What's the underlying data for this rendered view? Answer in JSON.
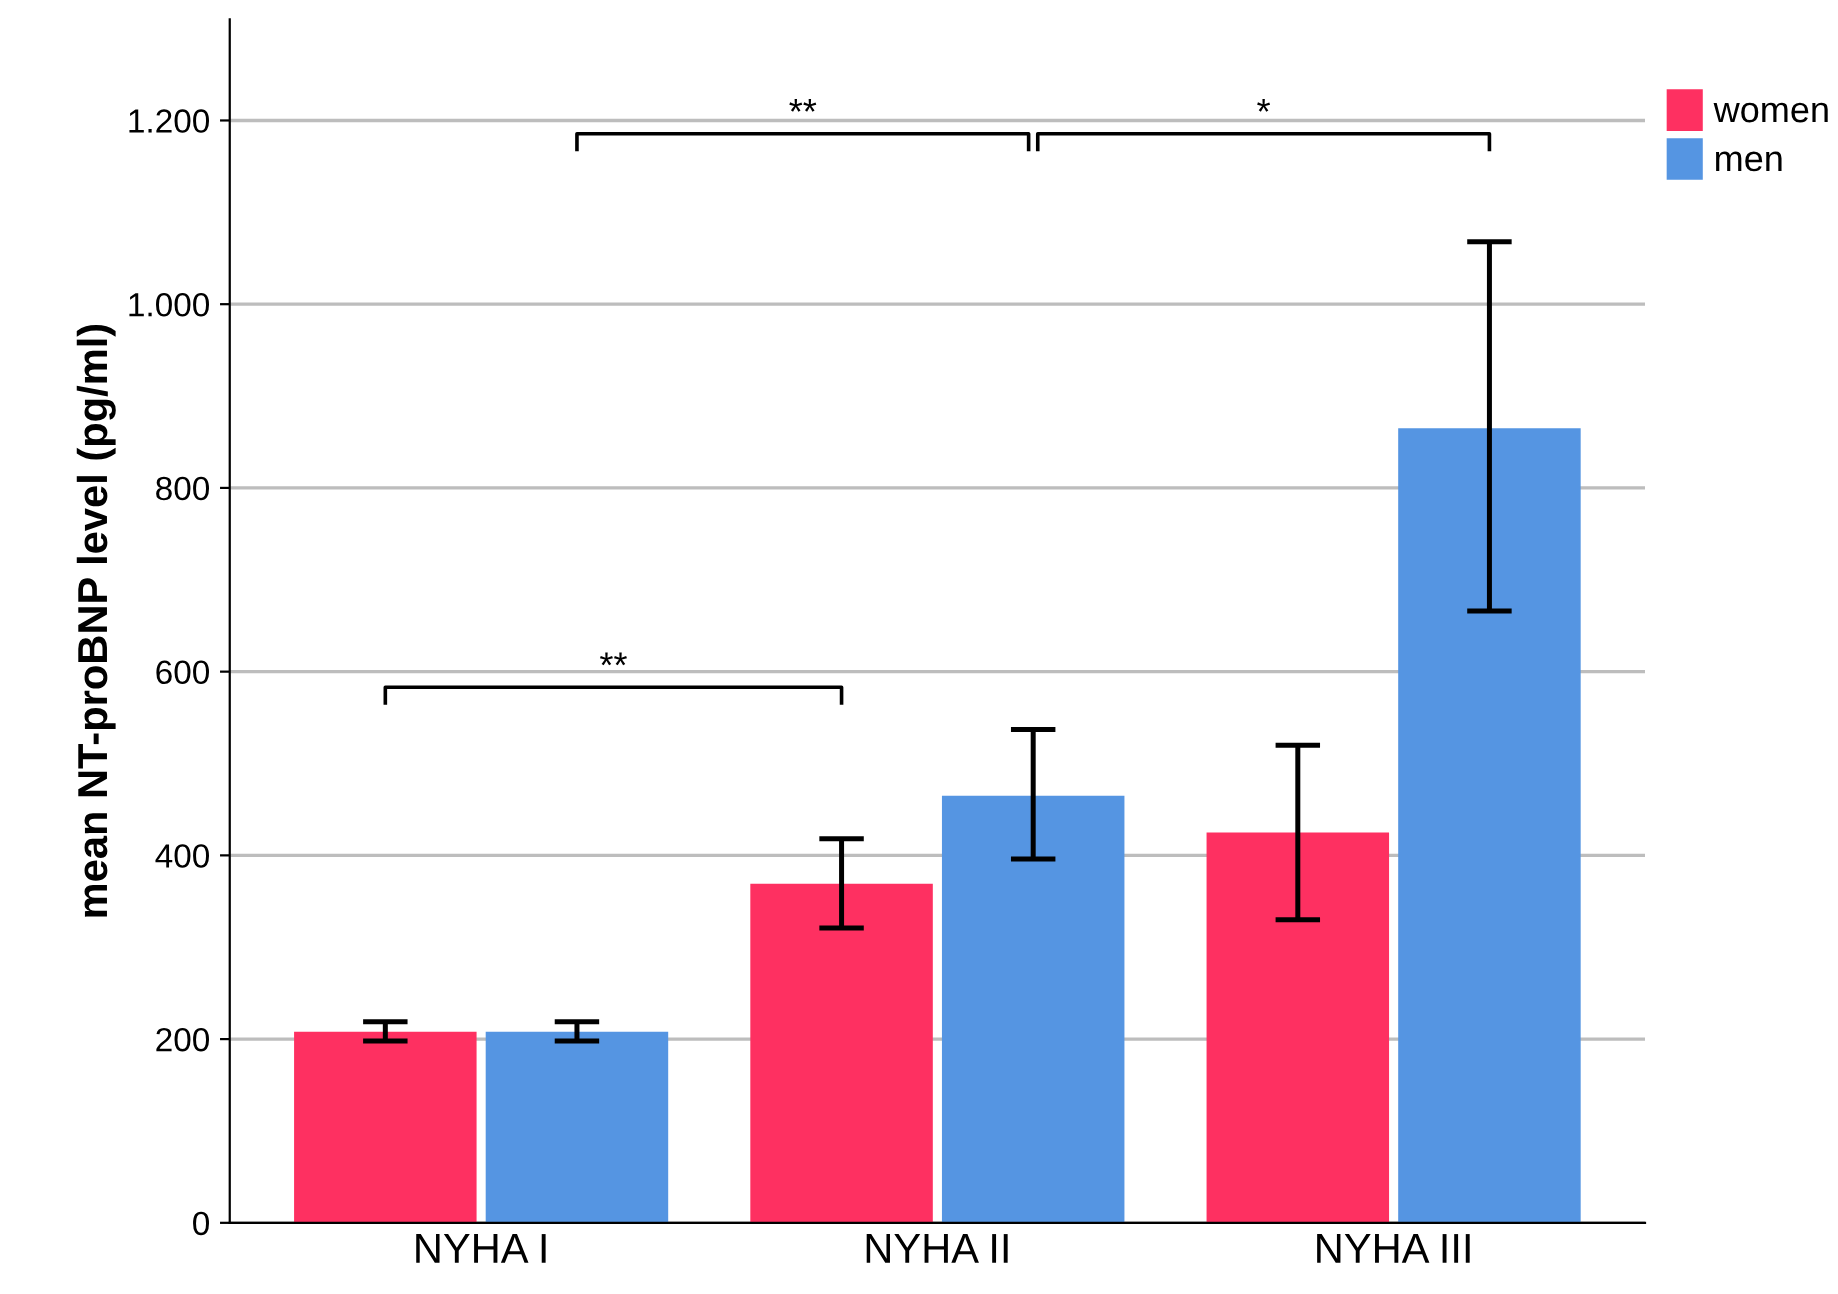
{
  "chart_data": {
    "type": "bar",
    "ylabel": "mean NT-proBNP level (pg/ml)",
    "categories": [
      "NYHA I",
      "NYHA II",
      "NYHA III"
    ],
    "series": [
      {
        "name": "women",
        "color": "#fe3061",
        "values": [
          208,
          369,
          425
        ],
        "errors": [
          [
            198,
            219
          ],
          [
            321,
            418
          ],
          [
            330,
            520
          ]
        ]
      },
      {
        "name": "men",
        "color": "#5595e2",
        "values": [
          208,
          465,
          865
        ],
        "errors": [
          [
            198,
            219
          ],
          [
            396,
            537
          ],
          [
            666,
            1068
          ]
        ]
      }
    ],
    "ylim": [
      0,
      1310
    ],
    "yticks": [
      0,
      200,
      400,
      600,
      800,
      {
        "value": 1000,
        "label": "1.000"
      },
      {
        "value": 1200,
        "label": "1.200"
      }
    ],
    "grid": "y",
    "legend": "top right",
    "annotations": [
      "**",
      "**",
      "*"
    ]
  }
}
